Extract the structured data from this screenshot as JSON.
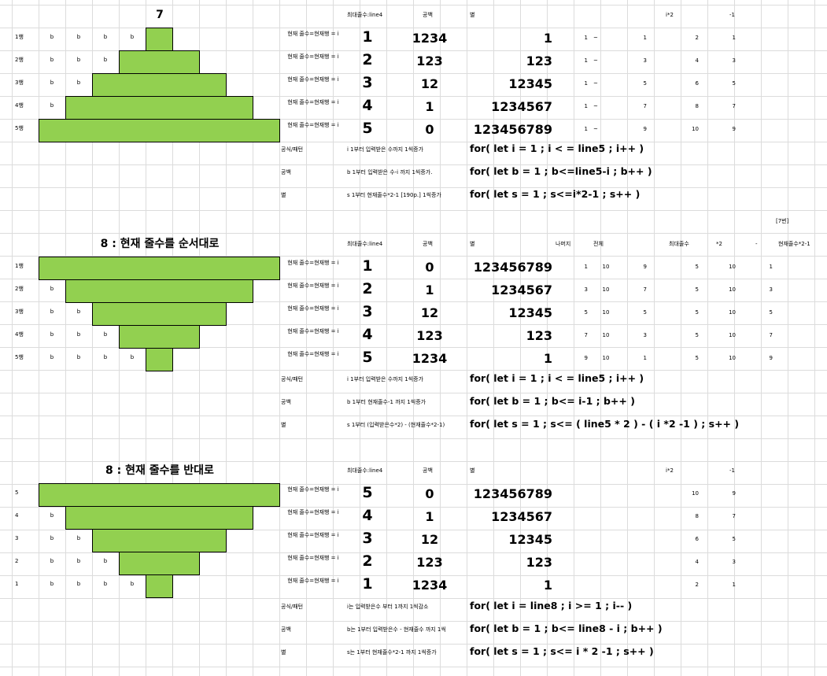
{
  "sec1": {
    "title": "7",
    "rows": [
      "1행",
      "2행",
      "3행",
      "4행",
      "5행"
    ],
    "stars": [
      1,
      3,
      5,
      7,
      9
    ],
    "nb": [
      4,
      3,
      2,
      1,
      0
    ],
    "hdr": [
      "최대줄수:line4",
      "공백",
      "별",
      "i*2",
      "-1"
    ],
    "cur": [
      "현재 줄수=현재행 = i",
      "현재 줄수=현재행 = i",
      "현재 줄수=현재행 = i",
      "현재 줄수=현재행 = i",
      "현재 줄수=현재행 = i"
    ],
    "line": [
      "1",
      "2",
      "3",
      "4",
      "5"
    ],
    "space": [
      "1234",
      "123",
      "12",
      "1",
      "0"
    ],
    "star": [
      "1",
      "123",
      "12345",
      "1234567",
      "123456789"
    ],
    "c1": [
      "1",
      "1",
      "1",
      "1",
      "1"
    ],
    "c2": [
      "~",
      "~",
      "~",
      "~",
      "~"
    ],
    "c3": [
      "1",
      "3",
      "5",
      "7",
      "9"
    ],
    "c4": [
      "2",
      "4",
      "6",
      "8",
      "10"
    ],
    "c5": [
      "1",
      "3",
      "5",
      "7",
      "9"
    ],
    "notes": [
      [
        "공식/패턴",
        "i 1부터 입력받은 수까지 1씩증가",
        "for( let i = 1 ; i < = line5 ; i++ )"
      ],
      [
        "공백",
        "b 1부터 입력받은 수-i 까지 1씩증가.",
        "for( let b = 1 ; b<=line5-i ; b++ )"
      ],
      [
        "별",
        "s 1부터 현재줄수*2-1 [190p.] 1씩증가",
        "for( let s = 1 ; s<=i*2-1 ; s++ )"
      ]
    ]
  },
  "mark": "[7번]",
  "sec2": {
    "title": "8 : 현재 줄수를 순서대로",
    "rows": [
      "1행",
      "2행",
      "3행",
      "4행",
      "5행"
    ],
    "stars": [
      9,
      7,
      5,
      3,
      1
    ],
    "nb": [
      0,
      1,
      2,
      3,
      4
    ],
    "hdr": [
      "최대줄수:line4",
      "공백",
      "별",
      "나머지",
      "전체",
      "최대줄수",
      "*2",
      "-",
      "현재줄수*2-1"
    ],
    "cur": [
      "현재 줄수=현재행 = i",
      "현재 줄수=현재행 = i",
      "현재 줄수=현재행 = i",
      "현재 줄수=현재행 = i",
      "현재 줄수=현재행 = i"
    ],
    "line": [
      "1",
      "2",
      "3",
      "4",
      "5"
    ],
    "space": [
      "0",
      "1",
      "12",
      "123",
      "1234"
    ],
    "star": [
      "123456789",
      "1234567",
      "12345",
      "123",
      "1"
    ],
    "c1": [
      "1",
      "3",
      "5",
      "7",
      "9"
    ],
    "c2": [
      "10",
      "10",
      "10",
      "10",
      "10"
    ],
    "c3": [
      "9",
      "7",
      "5",
      "3",
      "1"
    ],
    "c4": [
      "5",
      "5",
      "5",
      "5",
      "5"
    ],
    "c5": [
      "10",
      "10",
      "10",
      "10",
      "10"
    ],
    "c6": [
      "1",
      "3",
      "5",
      "7",
      "9"
    ],
    "notes": [
      [
        "공식/패턴",
        "i 1부터 입력받은 수까지 1씩증가",
        "for( let i = 1 ; i < = line5 ; i++ )"
      ],
      [
        "공백",
        "b 1부터 현재줄수-1 까지 1씩증가",
        "for( let b = 1 ; b<= i-1 ; b++ )"
      ],
      [
        "별",
        "s 1부터 (입력받은수*2) - (현재줄수*2-1)",
        "for( let s = 1 ; s<= ( line5 * 2 )  - ( i *2 -1 ) ; s++ )"
      ]
    ]
  },
  "sec3": {
    "title": "8 : 현재 줄수를 반대로",
    "rows": [
      "5",
      "4",
      "3",
      "2",
      "1"
    ],
    "stars": [
      9,
      7,
      5,
      3,
      1
    ],
    "nb": [
      0,
      1,
      2,
      3,
      4
    ],
    "hdr": [
      "최대줄수:line4",
      "공백",
      "별",
      "i*2",
      "-1"
    ],
    "cur": [
      "현재 줄수=현재행 = i",
      "현재 줄수=현재행 = i",
      "현재 줄수=현재행 = i",
      "현재 줄수=현재행 = i",
      "현재 줄수=현재행 = i"
    ],
    "line": [
      "5",
      "4",
      "3",
      "2",
      "1"
    ],
    "space": [
      "0",
      "1",
      "12",
      "123",
      "1234"
    ],
    "star": [
      "123456789",
      "1234567",
      "12345",
      "123",
      "1"
    ],
    "c4": [
      "10",
      "8",
      "6",
      "4",
      "2"
    ],
    "c5": [
      "9",
      "7",
      "5",
      "3",
      "1"
    ],
    "notes": [
      [
        "공식/패턴",
        "i는 입력받은수 부터 1까지 1씩감소",
        "for( let i = line8 ; i >= 1 ; i-- )"
      ],
      [
        "공백",
        "b는 1부터 입력받은수 - 현재줄수 까지 1씩",
        "for( let b = 1 ; b<= line8 - i ; b++ )"
      ],
      [
        "별",
        "s는 1부터 현재줄수*2-1 까지 1씩증가",
        "for( let s = 1 ; s<= i * 2 -1 ; s++ )"
      ]
    ]
  }
}
